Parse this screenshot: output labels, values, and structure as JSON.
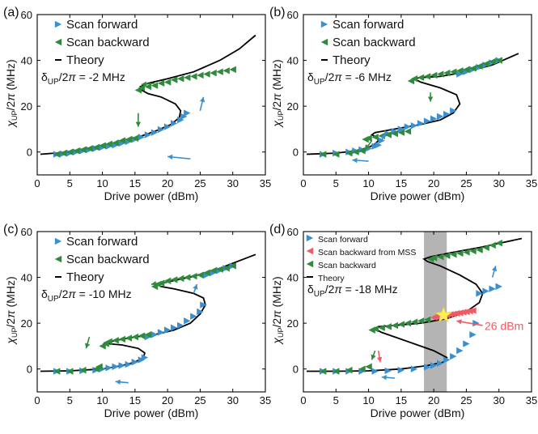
{
  "colors": {
    "forward": "#3a8fd0",
    "backward": "#2e8b3c",
    "mss": "#ee5b64",
    "theory": "#000000",
    "shade": "#a7a7a7",
    "star": "#ffee55"
  },
  "chart_data": [
    {
      "type": "scatter",
      "panel_label": "(a)",
      "xlabel": "Drive power (dBm)",
      "ylabel": "χ_UP/2π (MHz)",
      "xlim": [
        0,
        35
      ],
      "ylim": [
        -10,
        60
      ],
      "xticks": [
        0,
        5,
        10,
        15,
        20,
        25,
        30,
        35
      ],
      "yticks": [
        0,
        20,
        40,
        60
      ],
      "legend": [
        "Scan forward",
        "Scan backward",
        "Theory"
      ],
      "detuning_label": "δ_UP/2π = -2 MHz",
      "theory_line": {
        "lower_branch_x": [
          0.5,
          1,
          3,
          5,
          7,
          9,
          11,
          13,
          15,
          17,
          19,
          20.5,
          21.5,
          22
        ],
        "lower_branch_y": [
          -1,
          -0.9,
          -0.5,
          0,
          1,
          2,
          3,
          4.5,
          6,
          8,
          10,
          12,
          14,
          16
        ]
      },
      "series": [
        {
          "name": "Scan forward",
          "x": [
            3,
            4,
            5,
            6,
            7,
            8,
            9,
            10,
            11,
            12,
            13,
            14,
            15,
            16,
            17,
            18,
            19,
            20,
            21,
            22,
            22.5,
            23
          ],
          "y": [
            -1,
            -0.8,
            -0.5,
            0,
            0.5,
            1,
            1.5,
            2,
            2.5,
            3,
            3.8,
            4.5,
            5.5,
            6.5,
            7.5,
            8.5,
            9.8,
            11,
            12.5,
            14,
            15.5,
            17
          ]
        },
        {
          "name": "Scan backward",
          "x": [
            30,
            29,
            28,
            27,
            26,
            25,
            24,
            23,
            22,
            21,
            20,
            19,
            18,
            17,
            16,
            15.5,
            15,
            14,
            13,
            12,
            11,
            10,
            9,
            8,
            7,
            6,
            5,
            4,
            3
          ],
          "y": [
            36,
            35.5,
            35,
            34.5,
            34,
            33.5,
            33,
            32.5,
            32,
            31.5,
            30.5,
            30,
            29,
            28.5,
            28,
            27,
            6,
            5.5,
            5,
            4,
            3.5,
            2.8,
            2,
            1.5,
            1,
            0.5,
            0,
            -0.5,
            -1
          ]
        }
      ]
    },
    {
      "type": "scatter",
      "panel_label": "(b)",
      "xlabel": "Drive power (dBm)",
      "ylabel": "χ_UP/2π (MHz)",
      "xlim": [
        0,
        35
      ],
      "ylim": [
        -10,
        60
      ],
      "xticks": [
        0,
        5,
        10,
        15,
        20,
        25,
        30,
        35
      ],
      "yticks": [
        0,
        20,
        40,
        60
      ],
      "legend": [
        "Scan forward",
        "Scan backward",
        "Theory"
      ],
      "detuning_label": "δ_UP/2π = -6 MHz",
      "series": [
        {
          "name": "Scan forward",
          "x": [
            3,
            5,
            7,
            8,
            9,
            10,
            11,
            11.5,
            12,
            13,
            14,
            15,
            16,
            17,
            18,
            19,
            20,
            21,
            22,
            23,
            24,
            25,
            26,
            27,
            28,
            29,
            30
          ],
          "y": [
            -1,
            -0.5,
            0,
            0.5,
            1,
            1.5,
            2.5,
            3,
            5,
            8,
            9,
            10,
            11,
            11.5,
            12.5,
            13.5,
            14.5,
            15.5,
            16.5,
            18,
            34,
            35,
            36,
            37,
            38,
            39,
            40
          ]
        },
        {
          "name": "Scan backward",
          "x": [
            30,
            29,
            28,
            27,
            26,
            25,
            24,
            23,
            22,
            21,
            20,
            19,
            18,
            17,
            16.5,
            16,
            15,
            14,
            13,
            12,
            11,
            10,
            9.5,
            9,
            8,
            7,
            5,
            3
          ],
          "y": [
            40,
            39.5,
            38.5,
            37.5,
            36.5,
            36,
            35.5,
            35,
            34.5,
            34,
            33.5,
            33,
            32.5,
            32,
            31,
            9,
            8.5,
            8,
            7.5,
            7,
            6.5,
            6,
            5.5,
            0.5,
            0,
            -0.5,
            -1,
            -1
          ]
        }
      ]
    },
    {
      "type": "scatter",
      "panel_label": "(c)",
      "xlabel": "Drive power (dBm)",
      "ylabel": "χ_UP/2π (MHz)",
      "xlim": [
        0,
        35
      ],
      "ylim": [
        -10,
        60
      ],
      "xticks": [
        0,
        5,
        10,
        15,
        20,
        25,
        30,
        35
      ],
      "yticks": [
        0,
        20,
        40,
        60
      ],
      "legend": [
        "Scan forward",
        "Scan backward",
        "Theory"
      ],
      "detuning_label": "δ_UP/2π = -10 MHz",
      "series": [
        {
          "name": "Scan forward",
          "x": [
            3,
            5,
            7,
            9,
            10,
            11,
            12,
            13,
            14,
            15,
            16,
            16.5,
            17,
            18,
            19,
            20,
            21,
            22,
            23,
            24,
            25,
            25.5,
            26,
            27,
            28,
            29,
            30
          ],
          "y": [
            -1,
            -1,
            -0.8,
            -0.5,
            0,
            0.5,
            1,
            1.5,
            2,
            3,
            4,
            5,
            14,
            15,
            16,
            17,
            18,
            19,
            21,
            23,
            25,
            28,
            41,
            42,
            43,
            44,
            45
          ]
        },
        {
          "name": "Scan backward",
          "x": [
            30,
            29,
            28,
            27,
            26,
            25,
            24,
            23,
            22,
            21,
            20,
            19,
            18.5,
            18,
            17,
            16,
            15,
            14,
            13,
            12,
            11,
            10.5,
            10,
            9.5,
            9,
            7,
            5,
            3
          ],
          "y": [
            45,
            44,
            43.5,
            43,
            42,
            41,
            40.5,
            40,
            39.5,
            39,
            38.5,
            37.5,
            37,
            36,
            15,
            14.5,
            14,
            13.5,
            13,
            12.5,
            12,
            11,
            10,
            1,
            0,
            -0.5,
            -1,
            -1
          ]
        }
      ]
    },
    {
      "type": "scatter",
      "panel_label": "(d)",
      "xlabel": "Drive power (dBm)",
      "ylabel": "χ_UP/2π (MHz)",
      "xlim": [
        0,
        35
      ],
      "ylim": [
        -10,
        60
      ],
      "xticks": [
        0,
        5,
        10,
        15,
        20,
        25,
        30,
        35
      ],
      "yticks": [
        0,
        20,
        40,
        60
      ],
      "legend": [
        "Scan forward",
        "Scan backward from MSS",
        "Scan backward",
        "Theory"
      ],
      "detuning_label": "δ_UP/2π = -18 MHz",
      "shaded_x_range": [
        18.5,
        22
      ],
      "star": {
        "x": 21.5,
        "y": 23.5
      },
      "annotation": "26 dBm",
      "series": [
        {
          "name": "Scan forward",
          "x": [
            3,
            5,
            7,
            9,
            11,
            13,
            15,
            17,
            19,
            20,
            21,
            22,
            23,
            24,
            25,
            26,
            26.5,
            27,
            28,
            29,
            30
          ],
          "y": [
            -1,
            -1,
            -1,
            -1,
            -1,
            -0.8,
            -0.5,
            0,
            0.8,
            1.5,
            2.5,
            4,
            5.5,
            8,
            11,
            15,
            20,
            33,
            34,
            35,
            36
          ]
        },
        {
          "name": "Scan backward from MSS",
          "x": [
            26,
            25.5,
            25,
            24.5,
            24,
            23.5,
            23,
            22.5,
            22,
            21.5,
            21,
            20.5,
            20
          ],
          "y": [
            25.5,
            25.3,
            25,
            24.8,
            24.5,
            24.3,
            24,
            23.8,
            23.5,
            23.3,
            23,
            22.8,
            22.5
          ]
        },
        {
          "name": "Scan backward",
          "x": [
            30,
            29,
            28,
            27,
            26,
            25,
            24,
            23,
            22,
            21,
            20,
            19.5,
            19,
            18,
            17,
            16,
            15,
            14,
            13,
            12,
            11,
            10.5,
            10,
            9,
            7,
            5,
            3
          ],
          "y": [
            55,
            54,
            53,
            52,
            51.5,
            51,
            50.5,
            50,
            49.5,
            49,
            48.5,
            48,
            21.5,
            21,
            20.5,
            20,
            19.5,
            19,
            18.5,
            18,
            17.5,
            17,
            1,
            0,
            -0.5,
            -1,
            -1
          ]
        }
      ]
    }
  ]
}
